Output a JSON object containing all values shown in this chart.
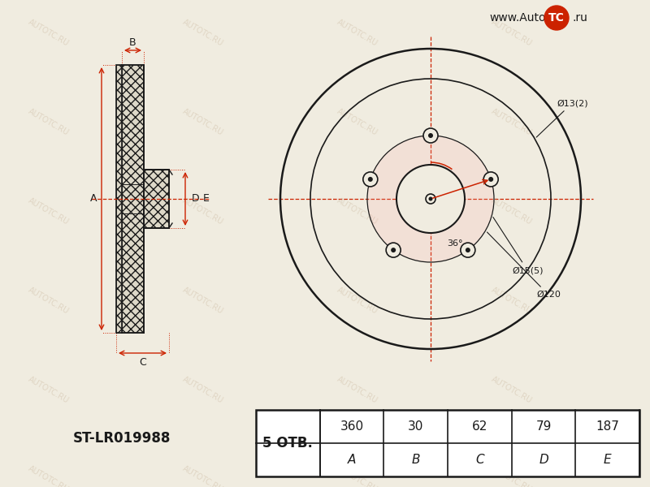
{
  "bg_color": "#f0ece0",
  "line_color": "#1a1a1a",
  "red_color": "#cc2200",
  "watermark_color": "#c8b49a",
  "part_number": "ST-LR019988",
  "holes_label": "5 ОТВ.",
  "table_headers": [
    "A",
    "B",
    "C",
    "D",
    "E"
  ],
  "table_values": [
    "360",
    "30",
    "62",
    "79",
    "187"
  ],
  "label_D13": "Ø13(2)",
  "label_D120": "Ø120",
  "label_D15": "Ø15(5)",
  "label_angle": "36°",
  "logo_text": "www.Auto",
  "logo_tc": "TC",
  "logo_ru": ".ru",
  "fig_w": 8.0,
  "fig_h": 6.0,
  "dpi": 100
}
